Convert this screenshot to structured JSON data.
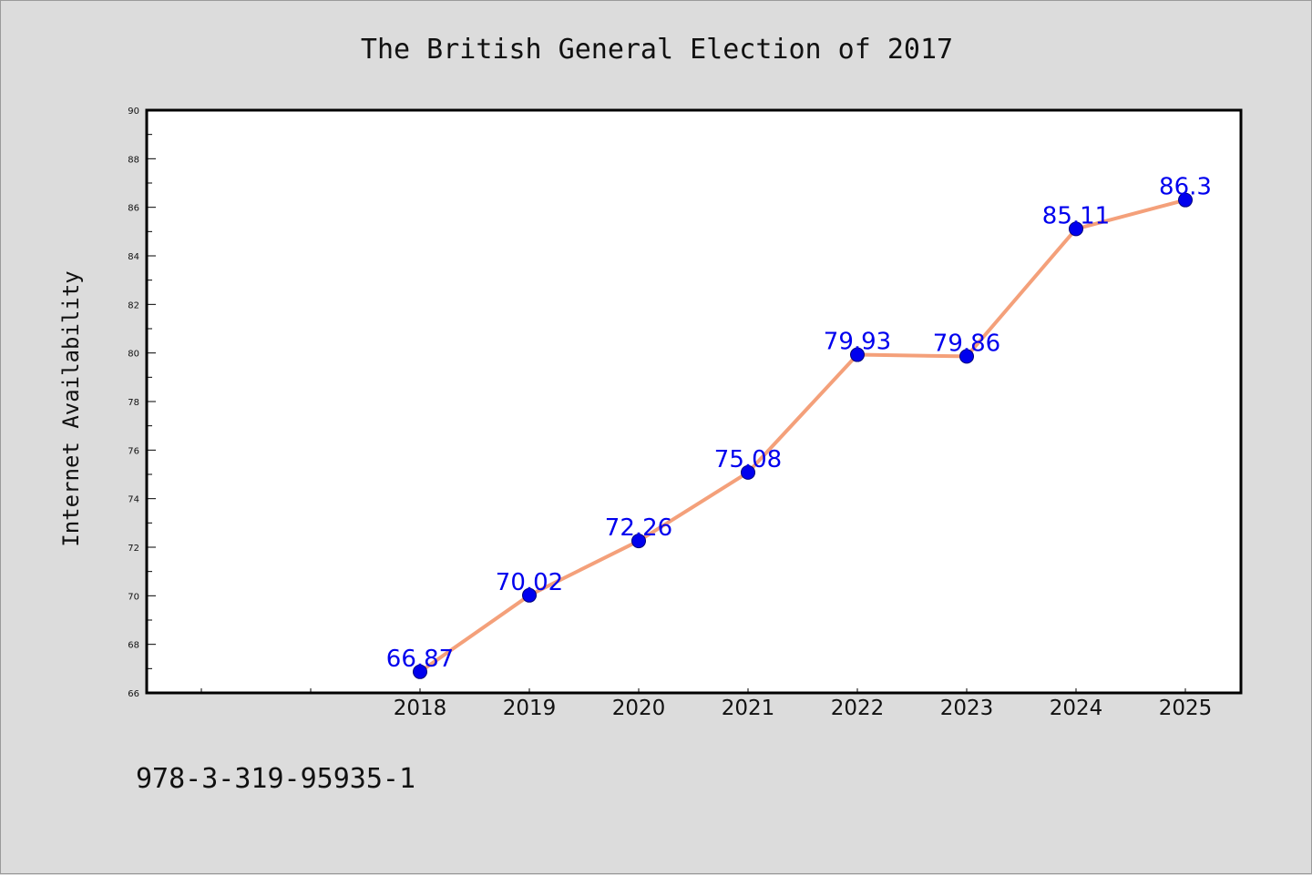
{
  "caption": "978-3-319-95935-1",
  "chart_data": {
    "type": "line",
    "title": "The British General Election of 2017",
    "xlabel": "",
    "ylabel": "Internet Availability",
    "categories": [
      "2018",
      "2019",
      "2020",
      "2021",
      "2022",
      "2023",
      "2024",
      "2025"
    ],
    "values": [
      66.87,
      70.02,
      72.26,
      75.08,
      79.93,
      79.86,
      85.11,
      86.3
    ],
    "data_labels": [
      "66.87",
      "70.02",
      "72.26",
      "75.08",
      "79.93",
      "79.86",
      "85.11",
      "86.3"
    ],
    "ylim": [
      66,
      90
    ],
    "yticks": [
      "66",
      "68",
      "70",
      "72",
      "74",
      "76",
      "78",
      "80",
      "82",
      "84",
      "86",
      "88",
      "90"
    ],
    "grid": false,
    "legend": "none",
    "colors": {
      "line": "#f4a07a",
      "marker": "#0000ee",
      "marker_edge": "#00007a",
      "label": "#0000ee",
      "background": "#dcdcdc",
      "plot_background": "#ffffff",
      "axis": "#000000"
    }
  }
}
